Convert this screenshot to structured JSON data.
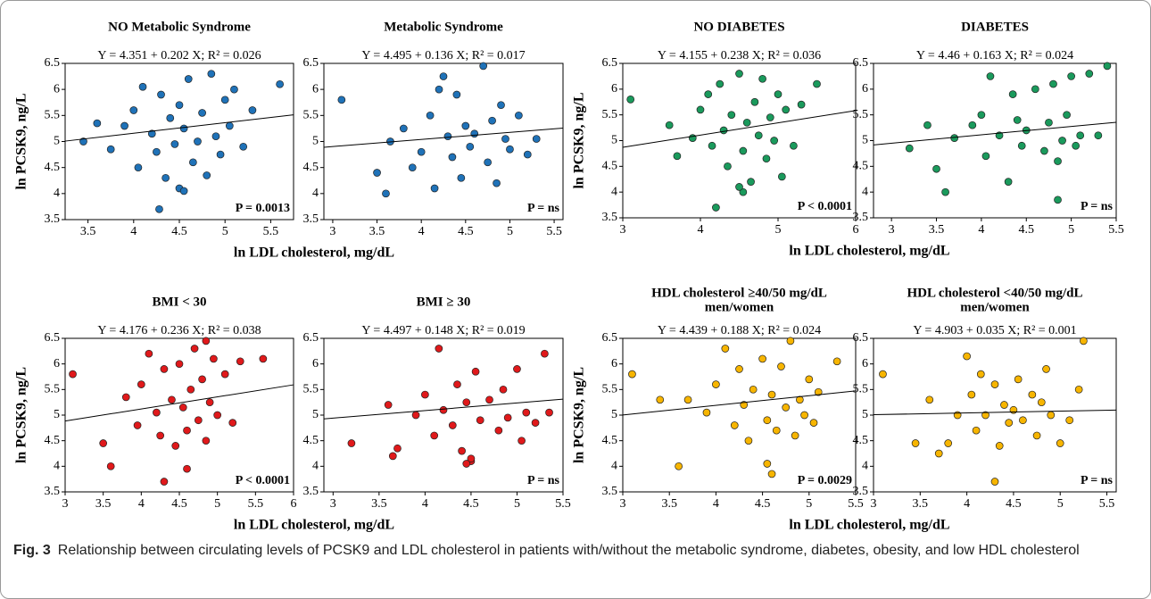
{
  "chart_data": [
    {
      "type": "scatter",
      "title": [
        "NO Metabolic Syndrome"
      ],
      "ylabel": "ln PCSK9, ng/L",
      "xlabel": "ln LDL cholesterol, mg/dL",
      "color": "#1f72b8",
      "equation": "Y = 4.351 + 0.202 X; R² = 0.026",
      "fit": {
        "intercept": 4.351,
        "slope": 0.202
      },
      "p_label": "P = 0.0013",
      "xlim": [
        3.25,
        5.75
      ],
      "xticks": [
        3.5,
        4,
        4.5,
        5,
        5.5
      ],
      "ylim": [
        3.5,
        6.5
      ],
      "yticks": [
        3.5,
        4,
        4.5,
        5,
        5.5,
        6,
        6.5
      ],
      "x": [
        3.45,
        3.6,
        3.75,
        3.9,
        4.0,
        4.05,
        4.1,
        4.2,
        4.25,
        4.3,
        4.35,
        4.4,
        4.45,
        4.5,
        4.5,
        4.55,
        4.6,
        4.65,
        4.7,
        4.75,
        4.8,
        4.85,
        4.9,
        4.95,
        5.0,
        5.05,
        5.1,
        5.2,
        5.3,
        5.6,
        4.28,
        4.55
      ],
      "y": [
        5.0,
        5.35,
        4.85,
        5.3,
        5.6,
        4.5,
        6.05,
        5.15,
        4.8,
        5.9,
        4.3,
        5.45,
        4.95,
        5.7,
        4.1,
        5.25,
        6.2,
        4.6,
        5.0,
        5.55,
        4.35,
        6.3,
        5.1,
        4.75,
        5.8,
        5.3,
        6.0,
        4.9,
        5.6,
        6.1,
        3.7,
        4.05
      ]
    },
    {
      "type": "scatter",
      "title": [
        "Metabolic Syndrome"
      ],
      "color": "#1f72b8",
      "equation": "Y = 4.495 + 0.136 X; R² = 0.017",
      "fit": {
        "intercept": 4.495,
        "slope": 0.136
      },
      "p_label": "P = ns",
      "xlim": [
        2.9,
        5.6
      ],
      "xticks": [
        3,
        3.5,
        4,
        4.5,
        5,
        5.5
      ],
      "ylim": [
        3.5,
        6.5
      ],
      "yticks": [
        3.5,
        4,
        4.5,
        5,
        5.5,
        6,
        6.5
      ],
      "x": [
        3.1,
        3.5,
        3.6,
        3.65,
        3.8,
        3.9,
        4.0,
        4.1,
        4.15,
        4.2,
        4.3,
        4.35,
        4.4,
        4.45,
        4.5,
        4.55,
        4.6,
        4.7,
        4.75,
        4.8,
        4.85,
        4.9,
        4.95,
        5.0,
        5.1,
        5.2,
        5.3,
        4.25
      ],
      "y": [
        5.8,
        4.4,
        4.0,
        5.0,
        5.25,
        4.5,
        4.8,
        5.5,
        4.1,
        6.0,
        5.1,
        4.7,
        5.9,
        4.3,
        5.3,
        4.9,
        5.15,
        6.45,
        4.6,
        5.4,
        4.2,
        5.7,
        5.05,
        4.85,
        5.5,
        4.75,
        5.05,
        6.25
      ]
    },
    {
      "type": "scatter",
      "title": [
        "NO DIABETES"
      ],
      "ylabel": "ln PCSK9, ng/L",
      "xlabel": "ln LDL cholesterol, mg/dL",
      "color": "#1a9a5c",
      "equation": "Y = 4.155 + 0.238 X; R² = 0.036",
      "fit": {
        "intercept": 4.155,
        "slope": 0.238
      },
      "p_label": "P < 0.0001",
      "xlim": [
        3,
        6
      ],
      "xticks": [
        3,
        4,
        5,
        6
      ],
      "ylim": [
        3.5,
        6.5
      ],
      "yticks": [
        3.5,
        4,
        4.5,
        5,
        5.5,
        6,
        6.5
      ],
      "x": [
        3.1,
        3.6,
        3.7,
        3.9,
        4.0,
        4.1,
        4.15,
        4.25,
        4.3,
        4.35,
        4.4,
        4.5,
        4.55,
        4.6,
        4.65,
        4.7,
        4.75,
        4.8,
        4.85,
        4.9,
        4.95,
        5.0,
        5.05,
        5.1,
        5.2,
        5.3,
        5.5,
        4.2,
        4.55,
        4.5
      ],
      "y": [
        5.8,
        5.3,
        4.7,
        5.05,
        5.6,
        5.9,
        4.9,
        6.1,
        5.2,
        4.5,
        5.5,
        6.3,
        4.8,
        5.35,
        4.2,
        5.75,
        5.1,
        6.2,
        4.65,
        5.45,
        5.0,
        5.9,
        4.3,
        5.6,
        4.9,
        5.7,
        6.1,
        3.7,
        4.0,
        4.1
      ]
    },
    {
      "type": "scatter",
      "title": [
        "DIABETES"
      ],
      "color": "#1a9a5c",
      "equation": "Y = 4.46 + 0.163 X; R² = 0.024",
      "fit": {
        "intercept": 4.46,
        "slope": 0.163
      },
      "p_label": "P = ns",
      "xlim": [
        2.8,
        5.5
      ],
      "xticks": [
        3,
        3.5,
        4,
        4.5,
        5,
        5.5
      ],
      "ylim": [
        3.5,
        6.5
      ],
      "yticks": [
        3.5,
        4,
        4.5,
        5,
        5.5,
        6,
        6.5
      ],
      "x": [
        3.2,
        3.4,
        3.5,
        3.6,
        3.7,
        3.9,
        4.0,
        4.05,
        4.1,
        4.2,
        4.3,
        4.35,
        4.4,
        4.45,
        4.5,
        4.6,
        4.7,
        4.75,
        4.8,
        4.85,
        4.9,
        4.95,
        5.0,
        5.05,
        5.1,
        5.2,
        5.3,
        5.4,
        4.85
      ],
      "y": [
        4.85,
        5.3,
        4.45,
        4.0,
        5.05,
        5.3,
        5.5,
        4.7,
        6.25,
        5.1,
        4.2,
        5.9,
        5.4,
        4.9,
        5.2,
        6.0,
        4.8,
        5.35,
        6.1,
        4.6,
        5.0,
        5.5,
        6.25,
        4.9,
        5.1,
        6.3,
        5.1,
        6.45,
        3.85
      ]
    },
    {
      "type": "scatter",
      "title": [
        "BMI < 30"
      ],
      "ylabel": "ln PCSK9, ng/L",
      "xlabel": "ln LDL cholesterol, mg/dL",
      "color": "#e0191b",
      "equation": "Y = 4.176 + 0.236 X; R² = 0.038",
      "fit": {
        "intercept": 4.176,
        "slope": 0.236
      },
      "p_label": "P < 0.0001",
      "xlim": [
        3,
        6
      ],
      "xticks": [
        3,
        3.5,
        4,
        4.5,
        5,
        5.5,
        6
      ],
      "ylim": [
        3.5,
        6.5
      ],
      "yticks": [
        3.5,
        4,
        4.5,
        5,
        5.5,
        6,
        6.5
      ],
      "x": [
        3.1,
        3.5,
        3.6,
        3.8,
        3.95,
        4.0,
        4.1,
        4.2,
        4.25,
        4.3,
        4.4,
        4.45,
        4.5,
        4.55,
        4.6,
        4.65,
        4.7,
        4.75,
        4.8,
        4.85,
        4.9,
        4.95,
        5.0,
        5.1,
        5.2,
        5.3,
        5.6,
        4.3,
        4.6,
        4.85
      ],
      "y": [
        5.8,
        4.45,
        4.0,
        5.35,
        4.8,
        5.6,
        6.2,
        5.05,
        4.6,
        5.9,
        5.3,
        4.4,
        6.0,
        5.15,
        4.7,
        5.5,
        6.3,
        4.9,
        5.7,
        4.5,
        5.25,
        6.1,
        5.0,
        5.8,
        4.85,
        6.05,
        6.1,
        3.7,
        3.95,
        6.45
      ]
    },
    {
      "type": "scatter",
      "title": [
        "BMI ≥ 30"
      ],
      "color": "#e0191b",
      "equation": "Y = 4.497 + 0.148 X; R² = 0.019",
      "fit": {
        "intercept": 4.497,
        "slope": 0.148
      },
      "p_label": "P = ns",
      "xlim": [
        2.9,
        5.5
      ],
      "xticks": [
        3,
        3.5,
        4,
        4.5,
        5,
        5.5
      ],
      "ylim": [
        3.5,
        6.5
      ],
      "yticks": [
        3.5,
        4,
        4.5,
        5,
        5.5,
        6,
        6.5
      ],
      "x": [
        3.2,
        3.6,
        3.65,
        3.7,
        3.9,
        4.0,
        4.1,
        4.15,
        4.2,
        4.3,
        4.35,
        4.4,
        4.45,
        4.5,
        4.55,
        4.6,
        4.7,
        4.8,
        4.85,
        4.9,
        5.0,
        5.05,
        5.1,
        5.2,
        5.3,
        5.35,
        4.5,
        4.45
      ],
      "y": [
        4.45,
        5.2,
        4.2,
        4.35,
        5.0,
        5.4,
        4.6,
        6.3,
        5.1,
        4.8,
        5.6,
        4.3,
        5.25,
        4.1,
        5.85,
        4.9,
        5.3,
        4.7,
        5.5,
        4.95,
        5.9,
        4.5,
        5.05,
        4.85,
        6.2,
        5.05,
        4.15,
        4.05
      ]
    },
    {
      "type": "scatter",
      "title": [
        "HDL cholesterol ≥40/50 mg/dL",
        "men/women"
      ],
      "ylabel": "ln PCSK9, ng/L",
      "xlabel": "ln LDL cholesterol, mg/dL",
      "color": "#f7b500",
      "equation": "Y = 4.439 + 0.188 X; R² = 0.024",
      "fit": {
        "intercept": 4.439,
        "slope": 0.188
      },
      "p_label": "P = 0.0029",
      "xlim": [
        3,
        5.5
      ],
      "xticks": [
        3,
        3.5,
        4,
        4.5,
        5,
        5.5
      ],
      "ylim": [
        3.5,
        6.5
      ],
      "yticks": [
        3.5,
        4,
        4.5,
        5,
        5.5,
        6,
        6.5
      ],
      "x": [
        3.1,
        3.4,
        3.6,
        3.7,
        3.9,
        4.0,
        4.1,
        4.2,
        4.25,
        4.3,
        4.35,
        4.4,
        4.5,
        4.55,
        4.6,
        4.65,
        4.7,
        4.75,
        4.8,
        4.85,
        4.9,
        4.95,
        5.0,
        5.05,
        5.1,
        5.3,
        4.6,
        4.55
      ],
      "y": [
        5.8,
        5.3,
        4.0,
        5.3,
        5.05,
        5.6,
        6.3,
        4.8,
        5.9,
        5.2,
        4.5,
        5.5,
        6.1,
        4.9,
        5.4,
        4.7,
        5.95,
        5.15,
        6.45,
        4.6,
        5.3,
        5.0,
        5.7,
        4.85,
        5.45,
        6.05,
        3.85,
        4.05
      ]
    },
    {
      "type": "scatter",
      "title": [
        "HDL cholesterol <40/50 mg/dL",
        "men/women"
      ],
      "color": "#f7b500",
      "equation": "Y = 4.903 + 0.035 X; R² = 0.001",
      "fit": {
        "intercept": 4.903,
        "slope": 0.035
      },
      "p_label": "P = ns",
      "xlim": [
        3,
        5.6
      ],
      "xticks": [
        3,
        3.5,
        4,
        4.5,
        5,
        5.5
      ],
      "ylim": [
        3.5,
        6.5
      ],
      "yticks": [
        3.5,
        4,
        4.5,
        5,
        5.5,
        6,
        6.5
      ],
      "x": [
        3.1,
        3.45,
        3.6,
        3.7,
        3.8,
        3.9,
        4.0,
        4.05,
        4.1,
        4.15,
        4.2,
        4.3,
        4.35,
        4.4,
        4.45,
        4.5,
        4.55,
        4.6,
        4.7,
        4.75,
        4.8,
        4.85,
        4.9,
        5.0,
        5.1,
        5.2,
        5.25,
        4.3
      ],
      "y": [
        5.8,
        4.45,
        5.3,
        4.25,
        4.45,
        5.0,
        6.15,
        5.4,
        4.7,
        5.8,
        5.0,
        5.6,
        4.4,
        5.2,
        4.85,
        5.1,
        5.7,
        4.9,
        5.4,
        4.6,
        5.25,
        5.9,
        5.0,
        4.45,
        4.9,
        5.5,
        6.45,
        3.7
      ]
    }
  ],
  "caption": {
    "label": "Fig. 3",
    "text": "Relationship between circulating levels of PCSK9 and LDL cholesterol in patients with/without the metabolic syndrome, diabetes, obesity, and low HDL cholesterol"
  }
}
